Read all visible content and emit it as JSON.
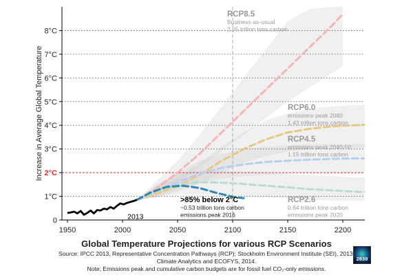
{
  "chart_data": {
    "type": "line",
    "title": "Global Temperature Projections for various RCP Scenarios",
    "ylabel": "Increase in Average Global Temperature",
    "xlabel": "",
    "xlim": [
      1945,
      2220
    ],
    "ylim": [
      0,
      9
    ],
    "x_ticks": [
      1950,
      2000,
      2050,
      2100,
      2150,
      2200
    ],
    "x_tick_labels": [
      "1950",
      "2000",
      "2050",
      "2100",
      "2150",
      "2200"
    ],
    "y_ticks": [
      0,
      1,
      2,
      3,
      4,
      5,
      6,
      7,
      8
    ],
    "y_tick_labels": [
      "0",
      "1°C",
      "2°C",
      "3°C",
      "4°C",
      "5°C",
      "6°C",
      "7°C",
      "8°C"
    ],
    "reference_line": {
      "y": 2,
      "label": "2°C",
      "color": "#e03030"
    },
    "vertical_marker": {
      "x": 2100
    },
    "observed": {
      "name": "Observed",
      "color": "#000000",
      "end_label": "2013",
      "x": [
        1950,
        1953,
        1956,
        1959,
        1962,
        1965,
        1968,
        1971,
        1974,
        1977,
        1980,
        1983,
        1986,
        1989,
        1992,
        1995,
        1998,
        2001,
        2004,
        2007,
        2010,
        2013
      ],
      "y": [
        0.3,
        0.32,
        0.35,
        0.28,
        0.38,
        0.22,
        0.3,
        0.4,
        0.28,
        0.42,
        0.4,
        0.48,
        0.45,
        0.55,
        0.48,
        0.6,
        0.7,
        0.66,
        0.72,
        0.76,
        0.8,
        0.85
      ]
    },
    "series": [
      {
        "name": "RCP8.5",
        "color": "#f5b5b5",
        "label_color": "#999999",
        "notes": [
          "Business-as-usual",
          "2.05 trillion tons carbon"
        ],
        "x": [
          2013,
          2030,
          2050,
          2070,
          2090,
          2110,
          2130,
          2150,
          2170,
          2190,
          2200
        ],
        "y": [
          0.85,
          1.3,
          2.0,
          2.8,
          3.7,
          4.6,
          5.5,
          6.4,
          7.3,
          8.2,
          8.7
        ],
        "band_low": [
          0.85,
          1.1,
          1.6,
          2.2,
          2.9,
          3.6,
          4.3,
          5.0,
          5.6,
          6.2,
          6.5
        ],
        "band_high": [
          0.85,
          1.6,
          2.5,
          3.6,
          4.8,
          6.0,
          7.2,
          8.4,
          8.9,
          9.0,
          9.0
        ]
      },
      {
        "name": "RCP6.0",
        "color": "#e8c880",
        "label_color": "#999999",
        "notes": [
          "emissions peak 2080",
          "1.43 trillion tons carbon"
        ],
        "x": [
          2013,
          2030,
          2050,
          2070,
          2090,
          2110,
          2130,
          2150,
          2170,
          2190,
          2210,
          2220
        ],
        "y": [
          0.85,
          1.1,
          1.45,
          1.9,
          2.5,
          3.0,
          3.4,
          3.7,
          3.85,
          3.95,
          4.0,
          4.02
        ],
        "band_low": [
          0.85,
          0.95,
          1.2,
          1.55,
          2.0,
          2.4,
          2.7,
          2.9,
          3.0,
          3.05,
          3.05,
          3.05
        ],
        "band_high": [
          0.85,
          1.3,
          1.8,
          2.4,
          3.1,
          3.7,
          4.2,
          4.5,
          4.7,
          4.8,
          4.85,
          4.85
        ]
      },
      {
        "name": "RCP4.5",
        "color": "#b8cdf0",
        "label_color": "#999999",
        "notes": [
          "emissions peak 2040-50",
          "1.15 trillion tons carbon"
        ],
        "x": [
          2013,
          2030,
          2050,
          2070,
          2090,
          2110,
          2130,
          2150,
          2170,
          2190,
          2210,
          2220
        ],
        "y": [
          0.85,
          1.2,
          1.6,
          1.95,
          2.2,
          2.35,
          2.45,
          2.5,
          2.55,
          2.58,
          2.6,
          2.6
        ],
        "band_low": [
          0.85,
          1.0,
          1.3,
          1.55,
          1.75,
          1.85,
          1.9,
          1.95,
          1.95,
          1.95,
          1.95,
          1.95
        ],
        "band_high": [
          0.85,
          1.45,
          2.0,
          2.5,
          2.8,
          3.0,
          3.1,
          3.15,
          3.2,
          3.2,
          3.2,
          3.2
        ]
      },
      {
        "name": "RCP2.6",
        "color": "#b8dccc",
        "label_color": "#999999",
        "notes": [
          "0.64 trillion tons carbon",
          "emissions peak 2020"
        ],
        "x": [
          2013,
          2030,
          2050,
          2070,
          2090,
          2110,
          2130,
          2150,
          2170,
          2190,
          2210,
          2220
        ],
        "y": [
          0.85,
          1.2,
          1.5,
          1.6,
          1.58,
          1.52,
          1.45,
          1.38,
          1.3,
          1.25,
          1.2,
          1.18
        ],
        "band_low": [
          0.85,
          0.95,
          1.1,
          1.1,
          1.05,
          1.0,
          0.95,
          0.9,
          0.85,
          0.82,
          0.8,
          0.8
        ],
        "band_high": [
          0.85,
          1.45,
          1.95,
          2.1,
          2.1,
          2.05,
          2.0,
          1.95,
          1.9,
          1.85,
          1.8,
          1.8
        ]
      },
      {
        "name": ">85% below 2°C",
        "color": "#2e86b0",
        "label_color": "#000000",
        "notes": [
          "~0.53 trillion tons carbon",
          "emissions peak 2016"
        ],
        "x": [
          2013,
          2025,
          2040,
          2055,
          2070,
          2085,
          2100,
          2110
        ],
        "y": [
          0.85,
          1.15,
          1.4,
          1.45,
          1.35,
          1.15,
          0.98,
          0.92
        ]
      }
    ]
  },
  "footer": {
    "source_line1": "Source: IPCC 2013, Representative Concentration Pathways (RCP); Stockholm Environment Institute (SEI), 2013;",
    "source_line2": "Climate Analytics and ECOFYS, 2014.",
    "source_line3": "Note; Emissions peak and cumulative carbon budgets are for fossil fuel CO₂-only emissions."
  },
  "logo": {
    "text": "2030"
  }
}
